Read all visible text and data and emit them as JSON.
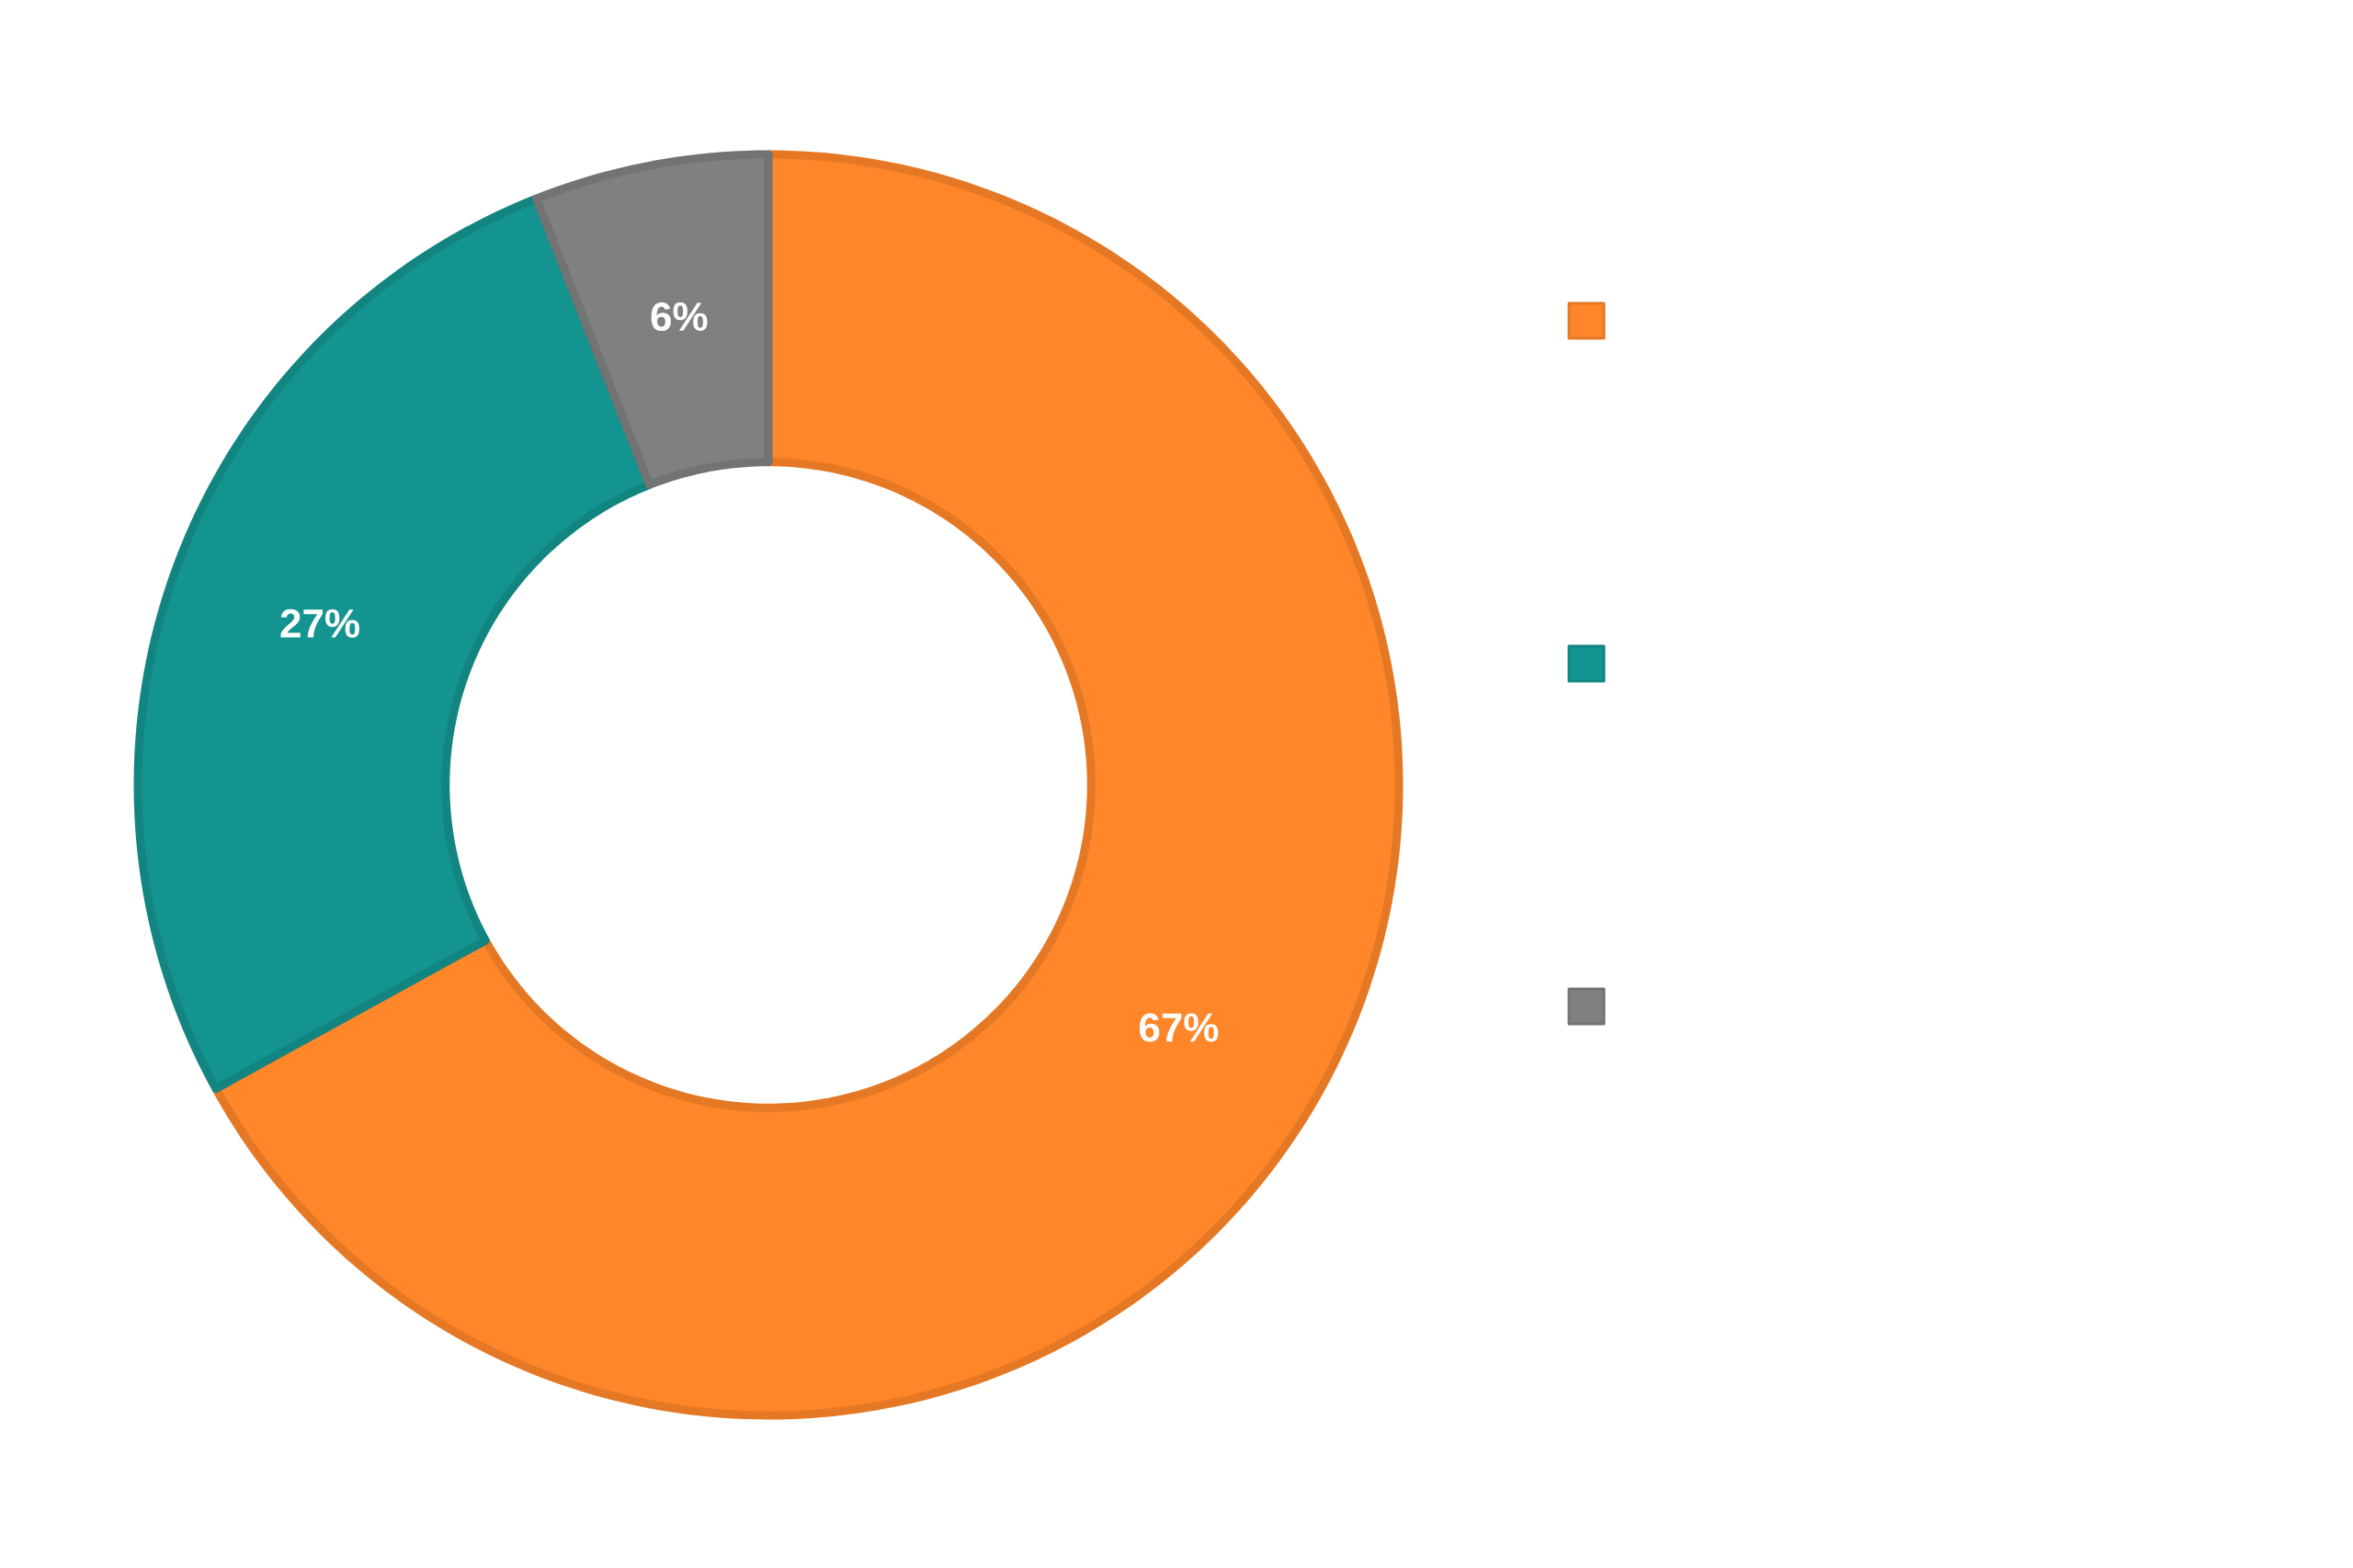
{
  "chart_data": {
    "type": "donut",
    "categories": [
      null,
      null,
      null
    ],
    "values": [
      67,
      27,
      6
    ],
    "colors": [
      "#ff8629",
      "#149490",
      "#808080"
    ],
    "value_labels": [
      "67%",
      "27%",
      "6%"
    ]
  }
}
